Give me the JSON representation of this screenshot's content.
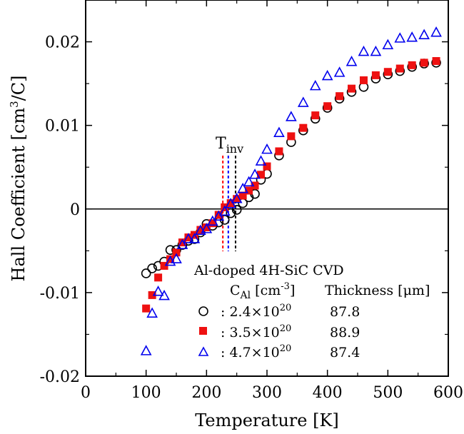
{
  "chart_data": {
    "type": "scatter",
    "title": "",
    "xlabel": "Temperature  [K]",
    "ylabel_main": "Hall Coefficient  [cm",
    "ylabel_sup": "3",
    "ylabel_end": "/C]",
    "xlim": [
      0,
      600
    ],
    "ylim": [
      -0.02,
      0.025
    ],
    "xticks": [
      0,
      100,
      200,
      300,
      400,
      500,
      600
    ],
    "xtick_labels": [
      "0",
      "100",
      "200",
      "300",
      "400",
      "500",
      "600"
    ],
    "yticks": [
      -0.02,
      -0.01,
      0,
      0.01,
      0.02
    ],
    "ytick_labels": [
      "-0.02",
      "-0.01",
      "0",
      "0.01",
      "0.02"
    ],
    "zero_line": 0,
    "tinv": {
      "label_main": "T",
      "label_sub": "inv",
      "lines": [
        {
          "x": 227,
          "color": "#ff0000"
        },
        {
          "x": 236,
          "color": "#0000ff"
        },
        {
          "x": 248,
          "color": "#000000"
        }
      ]
    },
    "legend": {
      "title": "Al-doped 4H-SiC CVD",
      "col1_header_main": "C",
      "col1_header_sub": "Al",
      "col1_header_unit": " [cm",
      "col1_header_sup": "-3",
      "col1_header_end": "]",
      "col2_header": "Thickness [μm]",
      "entries": [
        {
          "prefix": ": 2.4×10",
          "exp": "20",
          "thickness": "87.8"
        },
        {
          "prefix": ": 3.5×10",
          "exp": "20",
          "thickness": "88.9"
        },
        {
          "prefix": ": 4.7×10",
          "exp": "20",
          "thickness": "87.4"
        }
      ]
    },
    "series": [
      {
        "name": "2.4×10^20 (87.8 μm)",
        "marker": "circle",
        "color": "#000000",
        "x": [
          100,
          110,
          120,
          130,
          140,
          150,
          160,
          170,
          180,
          190,
          200,
          210,
          220,
          230,
          240,
          250,
          260,
          270,
          280,
          290,
          300,
          320,
          340,
          360,
          380,
          400,
          420,
          440,
          460,
          480,
          500,
          520,
          540,
          560,
          580
        ],
        "y": [
          -0.0077,
          -0.0071,
          -0.0068,
          -0.0063,
          -0.0049,
          -0.0049,
          -0.0043,
          -0.0038,
          -0.0036,
          -0.0028,
          -0.0018,
          -0.002,
          -0.0016,
          -0.0013,
          -0.0005,
          -0.0001,
          0.0007,
          0.0014,
          0.0018,
          0.0035,
          0.0042,
          0.0064,
          0.008,
          0.0094,
          0.0108,
          0.0121,
          0.0132,
          0.014,
          0.0146,
          0.0156,
          0.0161,
          0.0165,
          0.017,
          0.0174,
          0.0175
        ]
      },
      {
        "name": "3.5×10^20 (88.9 μm)",
        "marker": "square",
        "color": "#ee1111",
        "x": [
          100,
          110,
          120,
          130,
          140,
          150,
          160,
          170,
          180,
          190,
          200,
          210,
          220,
          230,
          240,
          250,
          260,
          270,
          280,
          290,
          300,
          320,
          340,
          360,
          380,
          400,
          420,
          440,
          460,
          480,
          500,
          520,
          540,
          560,
          580
        ],
        "y": [
          -0.0119,
          -0.0103,
          -0.0082,
          -0.0068,
          -0.006,
          -0.0052,
          -0.004,
          -0.0034,
          -0.0031,
          -0.0025,
          -0.0022,
          -0.0017,
          -0.0007,
          0.0002,
          0.0007,
          0.0012,
          0.0016,
          0.0022,
          0.0028,
          0.0041,
          0.0051,
          0.0069,
          0.0087,
          0.0097,
          0.0112,
          0.0123,
          0.0135,
          0.0144,
          0.0154,
          0.016,
          0.0164,
          0.0168,
          0.0172,
          0.0175,
          0.0177
        ]
      },
      {
        "name": "4.7×10^20 (87.4 μm)",
        "marker": "triangle",
        "color": "#0000ee",
        "x": [
          100,
          110,
          120,
          130,
          140,
          150,
          160,
          170,
          180,
          190,
          200,
          210,
          220,
          230,
          240,
          250,
          260,
          270,
          280,
          290,
          300,
          320,
          340,
          360,
          380,
          400,
          420,
          440,
          460,
          480,
          500,
          520,
          540,
          560,
          580
        ],
        "y": [
          -0.017,
          -0.0125,
          -0.0099,
          -0.0104,
          -0.0063,
          -0.006,
          -0.0043,
          -0.0036,
          -0.0036,
          -0.0026,
          -0.0024,
          -0.0015,
          -0.0009,
          -0.0003,
          0.0006,
          0.0012,
          0.0024,
          0.0032,
          0.0041,
          0.0057,
          0.0071,
          0.0091,
          0.011,
          0.0127,
          0.0147,
          0.0159,
          0.0163,
          0.0176,
          0.0188,
          0.0188,
          0.0196,
          0.0204,
          0.0205,
          0.0208,
          0.0211
        ]
      }
    ]
  }
}
